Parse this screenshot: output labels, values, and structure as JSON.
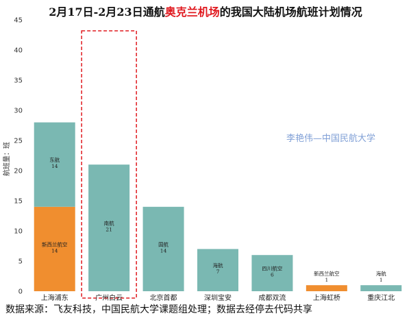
{
  "title": {
    "prefix": "2月17日-2月23日通航",
    "highlight": "奥克兰机场",
    "suffix": "的我国大陆机场航班计划情况",
    "highlight_color": "#e0191f"
  },
  "watermark": "李艳伟—中国民航大学",
  "source": "数据来源：飞友科技，中国民航大学课题组处理；数据去经停去代码共享",
  "colors": {
    "teal": "#7ab8b2",
    "orange": "#f08e2f",
    "highlight_box": "#e0191f",
    "gridline": "#e8e8e8"
  },
  "chart_data": {
    "type": "bar",
    "stacked": true,
    "ylabel": "航班量：班",
    "ylim": [
      0,
      45
    ],
    "yticks": [
      0,
      5,
      10,
      15,
      20,
      25,
      30,
      35,
      40,
      45
    ],
    "grid": false,
    "highlighted_category": "广州白云",
    "categories": [
      "上海浦东",
      "广州白云",
      "北京首都",
      "深圳宝安",
      "成都双流",
      "上海虹桥",
      "重庆江北"
    ],
    "stacks": [
      [
        {
          "airline": "新西兰航空",
          "value": 14,
          "color": "#f08e2f"
        },
        {
          "airline": "东航",
          "value": 14,
          "color": "#7ab8b2"
        }
      ],
      [
        {
          "airline": "南航",
          "value": 21,
          "color": "#7ab8b2"
        }
      ],
      [
        {
          "airline": "国航",
          "value": 14,
          "color": "#7ab8b2"
        }
      ],
      [
        {
          "airline": "海航",
          "value": 7,
          "color": "#7ab8b2"
        }
      ],
      [
        {
          "airline": "四川航空",
          "value": 6,
          "color": "#7ab8b2"
        }
      ],
      [
        {
          "airline": "新西兰航空",
          "value": 1,
          "color": "#f08e2f"
        }
      ],
      [
        {
          "airline": "海航",
          "value": 1,
          "color": "#7ab8b2"
        }
      ]
    ]
  }
}
